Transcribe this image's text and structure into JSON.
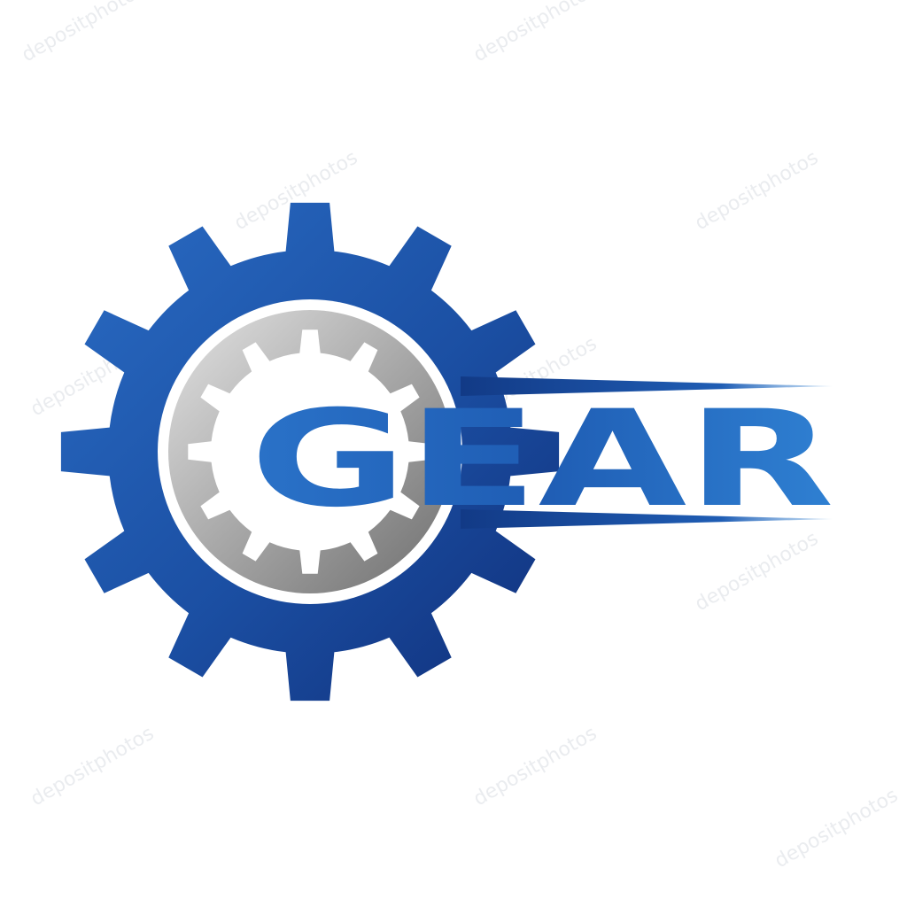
{
  "logo": {
    "wordmark": "GEAR",
    "colors": {
      "primary_blue": "#1e5bb0",
      "dark_blue": "#123a86",
      "light_blue": "#2f7fd0",
      "gear_gray_light": "#d6d6d6",
      "gear_gray_dark": "#7c7c7c",
      "background": "#ffffff"
    },
    "icons": [
      "outer-gear-icon",
      "inner-gear-icon",
      "speed-lines-icon"
    ]
  },
  "watermark": {
    "text": "depositphotos"
  }
}
